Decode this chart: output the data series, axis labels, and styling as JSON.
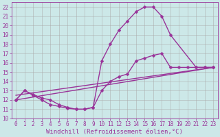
{
  "background_color": "#cce8e8",
  "grid_color": "#aaaaaa",
  "line_color": "#993399",
  "markersize": 2.5,
  "linewidth": 1.0,
  "xlim": [
    -0.5,
    23.5
  ],
  "ylim": [
    10,
    22.5
  ],
  "xticks": [
    0,
    1,
    2,
    3,
    4,
    5,
    6,
    7,
    8,
    9,
    10,
    11,
    12,
    13,
    14,
    15,
    16,
    17,
    18,
    19,
    20,
    21,
    22,
    23
  ],
  "yticks": [
    10,
    11,
    12,
    13,
    14,
    15,
    16,
    17,
    18,
    19,
    20,
    21,
    22
  ],
  "xlabel": "Windchill (Refroidissement éolien,°C)",
  "xlabel_fontsize": 6.5,
  "tick_fontsize": 5.5,
  "series": [
    {
      "x": [
        0,
        1,
        2,
        3,
        4,
        5,
        6,
        7,
        8,
        9,
        10,
        11,
        12,
        13,
        14,
        15,
        16,
        17,
        18,
        21,
        22,
        23
      ],
      "y": [
        12,
        13,
        12.6,
        12.2,
        12.0,
        11.5,
        11.2,
        11.0,
        11.0,
        11.2,
        16.2,
        18.0,
        19.5,
        20.5,
        21.5,
        22.0,
        22.0,
        21.0,
        19.0,
        15.5,
        15.5,
        15.5
      ],
      "marker": true
    },
    {
      "x": [
        0,
        1,
        2,
        3,
        4,
        5,
        6,
        7,
        8,
        9,
        10,
        11,
        12,
        13,
        14,
        15,
        16,
        17,
        18,
        19,
        20,
        21,
        22,
        23
      ],
      "y": [
        12,
        13,
        12.5,
        12.0,
        11.5,
        11.3,
        11.1,
        11.0,
        11.0,
        11.2,
        13.0,
        14.0,
        14.5,
        14.8,
        16.2,
        16.5,
        16.8,
        17.0,
        15.5,
        15.5,
        15.5,
        15.5,
        15.5,
        15.5
      ],
      "marker": true
    },
    {
      "x": [
        0,
        23
      ],
      "y": [
        12,
        15.5
      ],
      "marker": false
    },
    {
      "x": [
        0,
        23
      ],
      "y": [
        12.5,
        15.5
      ],
      "marker": false
    }
  ]
}
